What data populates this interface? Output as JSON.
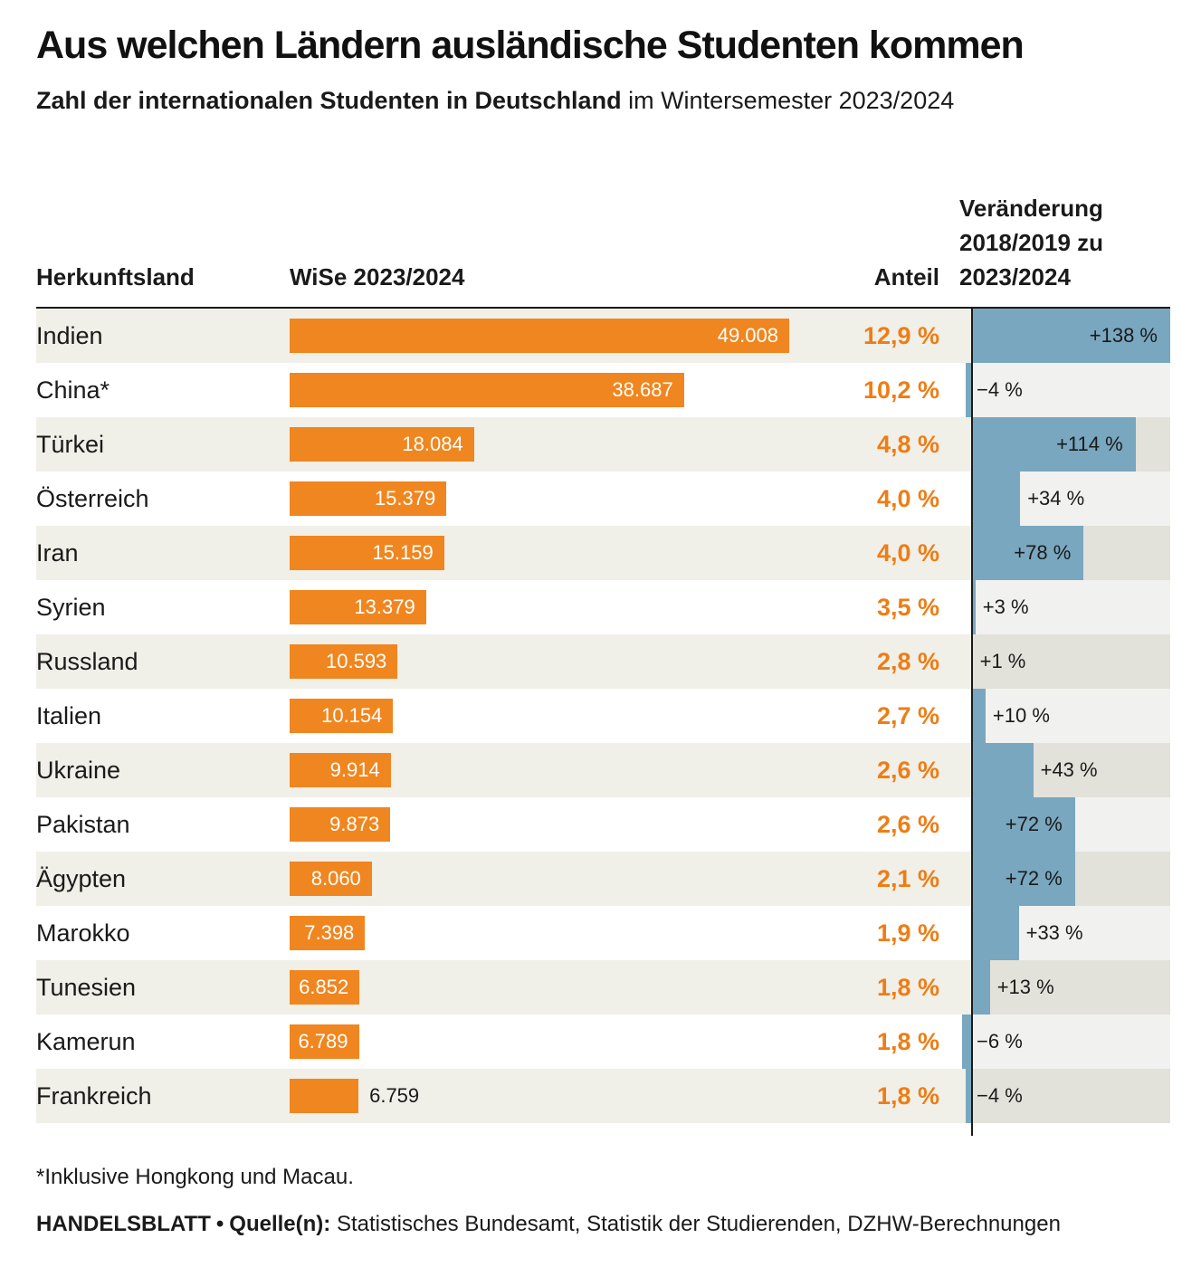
{
  "header": {
    "title": "Aus welchen Ländern ausländische Studenten kommen",
    "subtitle_bold": "Zahl der internationalen Studenten in Deutschland",
    "subtitle_rest": " im Wintersemester 2023/2024"
  },
  "columns": {
    "country": "Herkunftsland",
    "semester": "WiSe 2023/2024",
    "share": "Anteil",
    "change_lines": [
      "Veränderung",
      "2018/2019 zu",
      "2023/2024"
    ]
  },
  "chart_data": {
    "type": "bar",
    "title": "Aus welchen Ländern ausländische Studenten kommen",
    "subtitle": "Zahl der internationalen Studenten in Deutschland im Wintersemester 2023/2024",
    "students_axis_max": 49008,
    "change_axis_max": 138,
    "rows": [
      {
        "country": "Indien",
        "students": 49008,
        "students_label": "49.008",
        "share_pct": 12.9,
        "share": "12,9 %",
        "change_pct": 138,
        "change_label": "+138 %",
        "students_label_inside": true,
        "change_label_inside": true
      },
      {
        "country": "China*",
        "students": 38687,
        "students_label": "38.687",
        "share_pct": 10.2,
        "share": "10,2 %",
        "change_pct": -4,
        "change_label": "−4 %",
        "students_label_inside": true,
        "change_label_inside": false
      },
      {
        "country": "Türkei",
        "students": 18084,
        "students_label": "18.084",
        "share_pct": 4.8,
        "share": "4,8 %",
        "change_pct": 114,
        "change_label": "+114 %",
        "students_label_inside": true,
        "change_label_inside": true
      },
      {
        "country": "Österreich",
        "students": 15379,
        "students_label": "15.379",
        "share_pct": 4.0,
        "share": "4,0 %",
        "change_pct": 34,
        "change_label": "+34 %",
        "students_label_inside": true,
        "change_label_inside": false
      },
      {
        "country": "Iran",
        "students": 15159,
        "students_label": "15.159",
        "share_pct": 4.0,
        "share": "4,0 %",
        "change_pct": 78,
        "change_label": "+78 %",
        "students_label_inside": true,
        "change_label_inside": true
      },
      {
        "country": "Syrien",
        "students": 13379,
        "students_label": "13.379",
        "share_pct": 3.5,
        "share": "3,5 %",
        "change_pct": 3,
        "change_label": "+3 %",
        "students_label_inside": true,
        "change_label_inside": false
      },
      {
        "country": "Russland",
        "students": 10593,
        "students_label": "10.593",
        "share_pct": 2.8,
        "share": "2,8 %",
        "change_pct": 1,
        "change_label": "+1 %",
        "students_label_inside": true,
        "change_label_inside": false
      },
      {
        "country": "Italien",
        "students": 10154,
        "students_label": "10.154",
        "share_pct": 2.7,
        "share": "2,7 %",
        "change_pct": 10,
        "change_label": "+10 %",
        "students_label_inside": true,
        "change_label_inside": false
      },
      {
        "country": "Ukraine",
        "students": 9914,
        "students_label": "9.914",
        "share_pct": 2.6,
        "share": "2,6 %",
        "change_pct": 43,
        "change_label": "+43 %",
        "students_label_inside": true,
        "change_label_inside": false
      },
      {
        "country": "Pakistan",
        "students": 9873,
        "students_label": "9.873",
        "share_pct": 2.6,
        "share": "2,6 %",
        "change_pct": 72,
        "change_label": "+72 %",
        "students_label_inside": true,
        "change_label_inside": true
      },
      {
        "country": "Ägypten",
        "students": 8060,
        "students_label": "8.060",
        "share_pct": 2.1,
        "share": "2,1 %",
        "change_pct": 72,
        "change_label": "+72 %",
        "students_label_inside": true,
        "change_label_inside": true
      },
      {
        "country": "Marokko",
        "students": 7398,
        "students_label": "7.398",
        "share_pct": 1.9,
        "share": "1,9 %",
        "change_pct": 33,
        "change_label": "+33 %",
        "students_label_inside": true,
        "change_label_inside": false
      },
      {
        "country": "Tunesien",
        "students": 6852,
        "students_label": "6.852",
        "share_pct": 1.8,
        "share": "1,8 %",
        "change_pct": 13,
        "change_label": "+13 %",
        "students_label_inside": true,
        "change_label_inside": false
      },
      {
        "country": "Kamerun",
        "students": 6789,
        "students_label": "6.789",
        "share_pct": 1.8,
        "share": "1,8 %",
        "change_pct": -6,
        "change_label": "−6 %",
        "students_label_inside": true,
        "change_label_inside": false
      },
      {
        "country": "Frankreich",
        "students": 6759,
        "students_label": "6.759",
        "share_pct": 1.8,
        "share": "1,8 %",
        "change_pct": -4,
        "change_label": "−4 %",
        "students_label_inside": false,
        "change_label_inside": false
      }
    ]
  },
  "colors": {
    "bar": "#f0861f",
    "share_text": "#ee7d15",
    "change_bar": "#79a7bf",
    "row_shade": "#f0efe8",
    "change_track": "rgba(95,95,75,0.09)",
    "zero_line": "#1a1a1a"
  },
  "footnote": "*Inklusive Hongkong und Macau.",
  "source": {
    "brand": "HANDELSBLATT",
    "sep": "•",
    "label": "Quelle(n):",
    "text": "Statistisches Bundesamt, Statistik der Studierenden, DZHW-Berechnungen"
  }
}
